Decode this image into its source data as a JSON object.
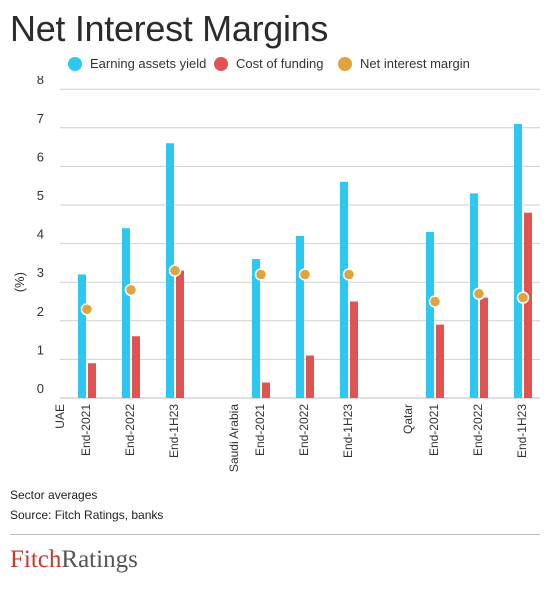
{
  "title": "Net Interest Margins",
  "colors": {
    "earning": "#2cc8ef",
    "cost": "#e05353",
    "nim": "#e0a33e",
    "grid": "#cfcfcf",
    "text": "#333333"
  },
  "legend": [
    {
      "label": "Earning assets yield",
      "color": "#2cc8ef"
    },
    {
      "label": "Cost of funding",
      "color": "#e05353"
    },
    {
      "label": "Net interest margin",
      "color": "#e0a33e"
    }
  ],
  "notes": {
    "line1": "Sector averages",
    "line2": "Source: Fitch Ratings, banks"
  },
  "logo": {
    "part1": "Fitch",
    "part2": "Ratings"
  },
  "chart_data": {
    "type": "bar",
    "title": "Net Interest Margins",
    "ylabel": "(%)",
    "xlabel": "",
    "ylim": [
      0,
      8
    ],
    "yticks": [
      0,
      1,
      2,
      3,
      4,
      5,
      6,
      7,
      8
    ],
    "grid": true,
    "legend_position": "top",
    "groups": [
      {
        "name": "UAE",
        "categories": [
          "End-2021",
          "End-2022",
          "End-1H23"
        ]
      },
      {
        "name": "Saudi Arabia",
        "categories": [
          "End-2021",
          "End-2022",
          "End-1H23"
        ]
      },
      {
        "name": "Qatar",
        "categories": [
          "End-2021",
          "End-2022",
          "End-1H23"
        ]
      }
    ],
    "series": [
      {
        "name": "Earning assets yield",
        "mark": "bar",
        "values": [
          3.2,
          4.4,
          6.6,
          3.6,
          4.2,
          5.6,
          4.3,
          5.3,
          7.1
        ]
      },
      {
        "name": "Cost of funding",
        "mark": "bar",
        "values": [
          0.9,
          1.6,
          3.3,
          0.4,
          1.1,
          2.5,
          1.9,
          2.6,
          4.8
        ]
      },
      {
        "name": "Net interest margin",
        "mark": "point",
        "values": [
          2.3,
          2.8,
          3.3,
          3.2,
          3.2,
          3.2,
          2.5,
          2.7,
          2.6
        ]
      }
    ]
  }
}
